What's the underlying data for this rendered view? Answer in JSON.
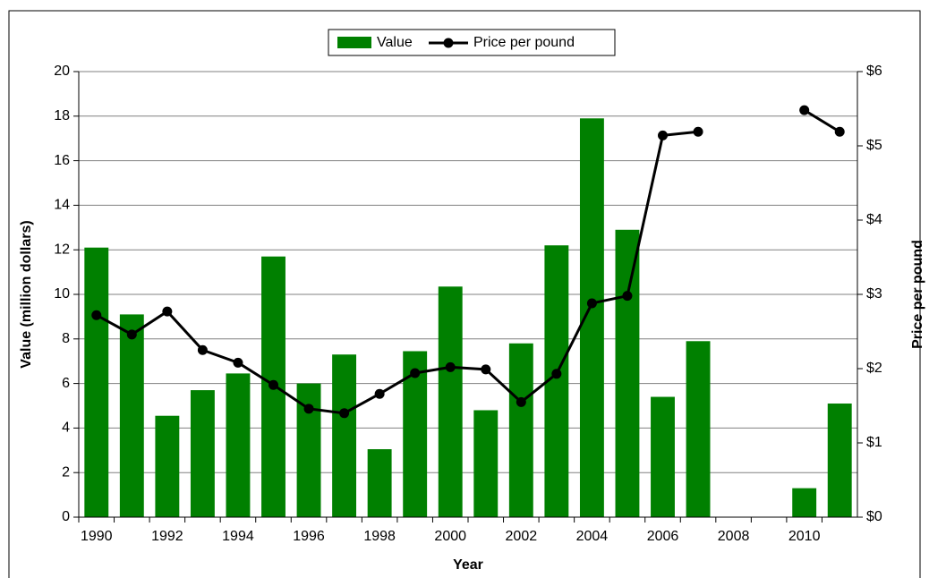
{
  "chart_data": {
    "type": "bar",
    "x_label": "Year",
    "y_label": "Value (million dollars)",
    "y2_label": "Price per pound",
    "categories": [
      "1990",
      null,
      "1992",
      null,
      "1994",
      null,
      "1996",
      null,
      "1998",
      null,
      "2000",
      null,
      "2002",
      null,
      "2004",
      null,
      "2006",
      null,
      "2008",
      null,
      "2010",
      null
    ],
    "series": [
      {
        "name": "Value",
        "type": "bar",
        "color": "#008000",
        "values": [
          12.1,
          9.1,
          4.55,
          5.7,
          6.45,
          11.7,
          6.0,
          7.3,
          3.05,
          7.45,
          10.35,
          4.8,
          7.8,
          12.2,
          17.9,
          12.9,
          5.4,
          7.9,
          null,
          null,
          1.3,
          5.1
        ]
      },
      {
        "name": "Price per pound",
        "type": "line",
        "axis": "y2",
        "color": "#000000",
        "values": [
          2.72,
          2.46,
          2.77,
          2.25,
          2.08,
          1.78,
          1.46,
          1.4,
          1.66,
          1.94,
          2.02,
          1.99,
          1.55,
          1.93,
          2.88,
          2.98,
          5.14,
          5.19,
          null,
          null,
          5.48,
          5.19
        ]
      }
    ],
    "ylim": [
      0,
      20
    ],
    "yticks": [
      0,
      2,
      4,
      6,
      8,
      10,
      12,
      14,
      16,
      18,
      20
    ],
    "y2lim": [
      0,
      6
    ],
    "y2ticks": [
      {
        "value": 0,
        "label": "$0"
      },
      {
        "value": 1,
        "label": "$1"
      },
      {
        "value": 2,
        "label": "$2"
      },
      {
        "value": 3,
        "label": "$3"
      },
      {
        "value": 4,
        "label": "$4"
      },
      {
        "value": 5,
        "label": "$5"
      },
      {
        "value": 6,
        "label": "$6"
      }
    ],
    "grid": true,
    "legend": "top"
  }
}
